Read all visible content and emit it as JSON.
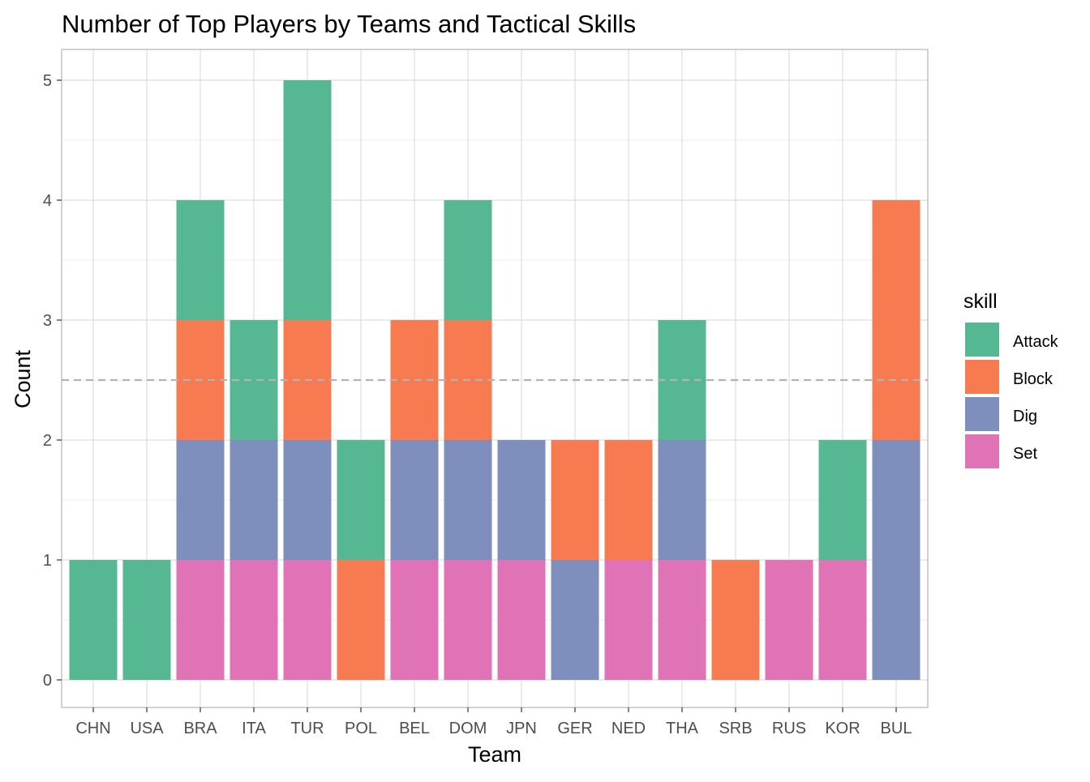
{
  "chart_data": {
    "type": "bar",
    "stacked": true,
    "title": "Number of Top Players by Teams and Tactical Skills",
    "xlabel": "Team",
    "ylabel": "Count",
    "ylim": [
      0,
      5
    ],
    "yticks": [
      0,
      1,
      2,
      3,
      4,
      5
    ],
    "grid": true,
    "legend_position": "right",
    "legend_title": "skill",
    "categories": [
      "CHN",
      "USA",
      "BRA",
      "ITA",
      "TUR",
      "POL",
      "BEL",
      "DOM",
      "JPN",
      "GER",
      "NED",
      "THA",
      "SRB",
      "RUS",
      "KOR",
      "BUL"
    ],
    "stack_order_bottom_to_top": [
      "Set",
      "Dig",
      "Block",
      "Attack"
    ],
    "series": [
      {
        "name": "Attack",
        "color": "#56B892",
        "values": [
          1,
          1,
          1,
          1,
          2,
          1,
          0,
          1,
          0,
          0,
          0,
          1,
          0,
          0,
          1,
          0
        ]
      },
      {
        "name": "Block",
        "color": "#F77A51",
        "values": [
          0,
          0,
          1,
          0,
          1,
          1,
          1,
          1,
          0,
          1,
          1,
          0,
          1,
          0,
          0,
          2
        ]
      },
      {
        "name": "Dig",
        "color": "#7E8FBE",
        "values": [
          0,
          0,
          1,
          1,
          1,
          0,
          1,
          1,
          1,
          1,
          0,
          1,
          0,
          0,
          0,
          2
        ]
      },
      {
        "name": "Set",
        "color": "#E072B6",
        "values": [
          0,
          0,
          1,
          1,
          1,
          0,
          1,
          1,
          1,
          0,
          1,
          1,
          0,
          1,
          1,
          0
        ]
      }
    ],
    "reference_line": {
      "y": 2.5,
      "style": "dashed",
      "color": "#B3B3B3"
    }
  }
}
